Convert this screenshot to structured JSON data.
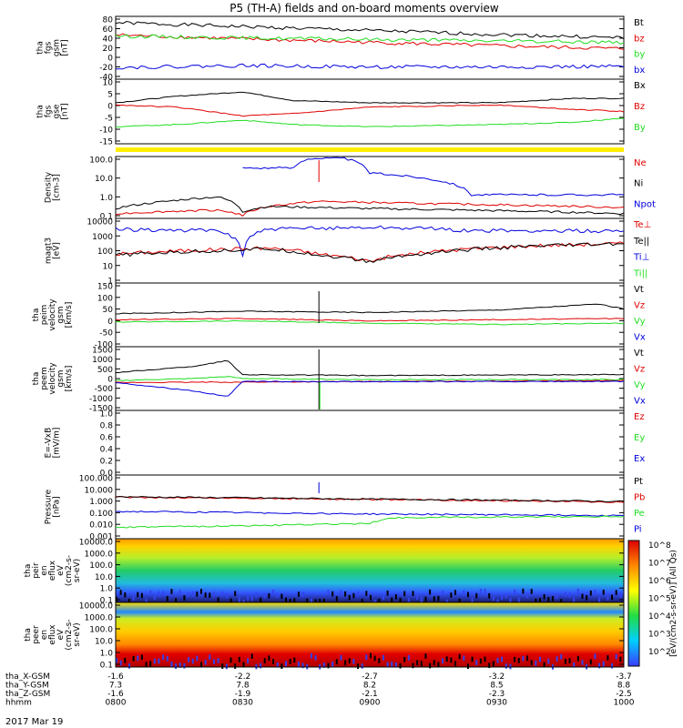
{
  "title": "P5 (TH-A) fields and on-board moments overview",
  "date_label": "2017 Mar 19",
  "colors": {
    "black": "#000000",
    "red": "#e00000",
    "green": "#22dd22",
    "blue": "#0000dd",
    "yellow": "#ffee00"
  },
  "chart_data": [
    {
      "type": "line",
      "ylabel": [
        "tha",
        "fgs",
        "gsm",
        "[nT]"
      ],
      "yticks": [
        "80",
        "60",
        "40",
        "20",
        "0",
        "-20",
        "-40"
      ],
      "ylim": [
        -40,
        80
      ],
      "legend": [
        {
          "name": "Bt",
          "color": "black"
        },
        {
          "name": "bz",
          "color": "red"
        },
        {
          "name": "by",
          "color": "green"
        },
        {
          "name": "bx",
          "color": "blue"
        }
      ],
      "series": [
        {
          "name": "Bt",
          "color": "black",
          "x": [
            0,
            0.25,
            0.5,
            0.75,
            1
          ],
          "y": [
            71,
            63,
            55,
            47,
            40
          ]
        },
        {
          "name": "bz",
          "color": "red",
          "x": [
            0,
            0.25,
            0.5,
            0.75,
            1
          ],
          "y": [
            46,
            38,
            31,
            24,
            18
          ]
        },
        {
          "name": "by",
          "color": "green",
          "x": [
            0,
            0.25,
            0.5,
            0.75,
            1
          ],
          "y": [
            44,
            40,
            37,
            34,
            31
          ]
        },
        {
          "name": "bx",
          "color": "blue",
          "x": [
            0,
            0.25,
            0.5,
            0.75,
            1
          ],
          "y": [
            -20,
            -16,
            -19,
            -19,
            -18
          ]
        }
      ]
    },
    {
      "type": "line",
      "ylabel": [
        "tha",
        "fgs",
        "gse",
        "[nT]"
      ],
      "yticks": [
        "10",
        "5",
        "0",
        "-5",
        "-10",
        "-15"
      ],
      "ylim": [
        -17,
        11
      ],
      "legend": [
        {
          "name": "Bx",
          "color": "black"
        },
        {
          "name": "Bz",
          "color": "red"
        },
        {
          "name": "By",
          "color": "green"
        }
      ],
      "series": [
        {
          "name": "Bx",
          "color": "black",
          "x": [
            0,
            0.12,
            0.25,
            0.35,
            0.5,
            0.75,
            0.9,
            1
          ],
          "y": [
            1,
            4,
            6,
            2,
            1,
            1,
            3,
            3
          ]
        },
        {
          "name": "Bz",
          "color": "red",
          "x": [
            0,
            0.12,
            0.25,
            0.35,
            0.5,
            0.75,
            0.9,
            1
          ],
          "y": [
            0,
            -1,
            -5,
            -4,
            -1,
            0,
            -2,
            -3
          ]
        },
        {
          "name": "By",
          "color": "green",
          "x": [
            0,
            0.12,
            0.25,
            0.35,
            0.5,
            0.75,
            0.9,
            1
          ],
          "y": [
            -10,
            -9,
            -7,
            -9,
            -10,
            -9,
            -8,
            -6
          ]
        }
      ]
    },
    {
      "type": "line",
      "ylabel": [
        "Density",
        "[cm-3]"
      ],
      "yticks": [
        "100.0",
        "10.0",
        "1.0",
        "0.1"
      ],
      "scale": "log",
      "ylim": [
        0.1,
        300
      ],
      "legend": [
        {
          "name": "Ne",
          "color": "red"
        },
        {
          "name": "Ni",
          "color": "black"
        },
        {
          "name": "Npot",
          "color": "blue"
        }
      ],
      "series": [
        {
          "name": "Npot",
          "color": "blue",
          "x": [
            0.25,
            0.35,
            0.38,
            0.45,
            0.5,
            0.7,
            1
          ],
          "y": [
            80,
            80,
            300,
            300,
            40,
            2,
            2
          ]
        },
        {
          "name": "Ne",
          "color": "red",
          "x": [
            0,
            0.2,
            0.25,
            0.3,
            0.4,
            0.6,
            1
          ],
          "y": [
            0.15,
            0.25,
            0.12,
            0.4,
            0.8,
            0.6,
            0.35
          ]
        },
        {
          "name": "Ni",
          "color": "black",
          "x": [
            0,
            0.1,
            0.2,
            0.25,
            0.3,
            0.5,
            1
          ],
          "y": [
            0.3,
            0.8,
            1.5,
            0.2,
            0.4,
            0.3,
            0.15
          ]
        }
      ]
    },
    {
      "type": "line",
      "ylabel": [
        "magt3",
        "[eV]"
      ],
      "yticks": [
        "10000",
        "1000",
        "100",
        "10",
        "1"
      ],
      "scale": "log",
      "ylim": [
        1,
        10000
      ],
      "legend": [
        {
          "name": "Te⊥",
          "color": "red"
        },
        {
          "name": "Te||",
          "color": "black"
        },
        {
          "name": "Ti⊥",
          "color": "blue"
        },
        {
          "name": "Ti||",
          "color": "green"
        }
      ],
      "series": [
        {
          "name": "Ti⊥",
          "color": "blue",
          "x": [
            0,
            0.2,
            0.25,
            0.3,
            0.5,
            0.6,
            0.7,
            1
          ],
          "y": [
            2500,
            2000,
            50,
            2500,
            3500,
            3000,
            2000,
            2000
          ]
        },
        {
          "name": "Te⊥",
          "color": "red",
          "x": [
            0,
            0.2,
            0.3,
            0.4,
            0.5,
            0.6,
            0.8,
            1
          ],
          "y": [
            60,
            120,
            150,
            60,
            20,
            70,
            200,
            300
          ]
        },
        {
          "name": "Te||",
          "color": "black",
          "x": [
            0,
            0.2,
            0.3,
            0.4,
            0.5,
            0.6,
            0.8,
            1
          ],
          "y": [
            50,
            100,
            130,
            50,
            18,
            60,
            180,
            280
          ]
        }
      ]
    },
    {
      "type": "line",
      "ylabel": [
        "tha",
        "peim",
        "velocity",
        "gsm",
        "[km/s]"
      ],
      "yticks": [
        "150",
        "100",
        "50",
        "0",
        "-50",
        "-100"
      ],
      "ylim": [
        -100,
        150
      ],
      "legend": [
        {
          "name": "Vt",
          "color": "black"
        },
        {
          "name": "Vz",
          "color": "red"
        },
        {
          "name": "Vy",
          "color": "green"
        },
        {
          "name": "Vx",
          "color": "blue"
        }
      ],
      "series": [
        {
          "name": "Vt",
          "color": "black",
          "x": [
            0,
            0.25,
            0.5,
            0.75,
            0.95,
            1
          ],
          "y": [
            30,
            40,
            35,
            45,
            70,
            50
          ]
        },
        {
          "name": "Vz",
          "color": "red",
          "x": [
            0,
            0.25,
            0.5,
            0.75,
            1
          ],
          "y": [
            5,
            10,
            0,
            5,
            10
          ]
        },
        {
          "name": "Vy",
          "color": "green",
          "x": [
            0,
            0.25,
            0.5,
            0.75,
            1
          ],
          "y": [
            -5,
            0,
            -10,
            -15,
            -10
          ]
        }
      ]
    },
    {
      "type": "line",
      "ylabel": [
        "tha",
        "peem",
        "velocity",
        "gsm",
        "[km/s]"
      ],
      "yticks": [
        "1500",
        "1000",
        "500",
        "0",
        "-500",
        "-1000",
        "-1500"
      ],
      "ylim": [
        -1500,
        1500
      ],
      "legend": [
        {
          "name": "Vt",
          "color": "black"
        },
        {
          "name": "Vz",
          "color": "red"
        },
        {
          "name": "Vy",
          "color": "green"
        },
        {
          "name": "Vx",
          "color": "blue"
        }
      ],
      "series": [
        {
          "name": "Vt",
          "color": "black",
          "x": [
            0,
            0.15,
            0.22,
            0.25,
            0.5,
            1
          ],
          "y": [
            300,
            600,
            900,
            200,
            150,
            200
          ]
        },
        {
          "name": "Vy",
          "color": "green",
          "x": [
            0,
            0.15,
            0.22,
            0.25,
            0.5,
            1
          ],
          "y": [
            -100,
            0,
            100,
            0,
            -50,
            -50
          ]
        },
        {
          "name": "Vz",
          "color": "red",
          "x": [
            0,
            0.5,
            1
          ],
          "y": [
            -200,
            -150,
            -100
          ]
        },
        {
          "name": "Vx",
          "color": "blue",
          "x": [
            0,
            0.15,
            0.22,
            0.25,
            0.5,
            1
          ],
          "y": [
            -200,
            -600,
            -900,
            -150,
            -150,
            -150
          ]
        }
      ]
    },
    {
      "type": "line",
      "ylabel": [
        "E=-VxB",
        "[mV/m]"
      ],
      "yticks": [
        "1.0",
        "0.8",
        "0.6",
        "0.4",
        "0.2",
        "0.0"
      ],
      "ylim": [
        0,
        1
      ],
      "legend": [
        {
          "name": "Ez",
          "color": "red"
        },
        {
          "name": "Ey",
          "color": "green"
        },
        {
          "name": "Ex",
          "color": "blue"
        }
      ],
      "series": []
    },
    {
      "type": "line",
      "ylabel": [
        "Pressure",
        "[nPa]"
      ],
      "yticks": [
        "100.000",
        "10.000",
        "1.000",
        "0.100",
        "0.010",
        "0.001"
      ],
      "scale": "log",
      "ylim": [
        0.001,
        100
      ],
      "legend": [
        {
          "name": "Pt",
          "color": "black"
        },
        {
          "name": "Pb",
          "color": "red"
        },
        {
          "name": "Pe",
          "color": "green"
        },
        {
          "name": "Pi",
          "color": "blue"
        }
      ],
      "series": [
        {
          "name": "Pb",
          "color": "red",
          "x": [
            0,
            0.5,
            1
          ],
          "y": [
            2.0,
            1.3,
            0.8
          ]
        },
        {
          "name": "Pt",
          "color": "black",
          "x": [
            0,
            0.5,
            1
          ],
          "y": [
            2.2,
            1.4,
            0.9
          ]
        },
        {
          "name": "Pi",
          "color": "blue",
          "x": [
            0,
            0.5,
            1
          ],
          "y": [
            0.13,
            0.08,
            0.06
          ]
        },
        {
          "name": "Pe",
          "color": "green",
          "x": [
            0,
            0.3,
            0.5,
            0.55,
            1
          ],
          "y": [
            0.006,
            0.009,
            0.013,
            0.04,
            0.05
          ]
        }
      ]
    },
    {
      "type": "heatmap",
      "ylabel": [
        "tha",
        "peir",
        "en",
        "eflux",
        "eV",
        "(cm2-s-",
        "sr-eV)"
      ],
      "yticks": [
        "10000.0",
        "1000.0",
        "100.0",
        "10.0",
        "1.0",
        "0.1"
      ]
    },
    {
      "type": "heatmap",
      "ylabel": [
        "tha",
        "peer",
        "en",
        "eflux",
        "eV",
        "(cm2-s-",
        "sr-eV)"
      ],
      "yticks": [
        "10000.0",
        "1000.0",
        "100.0",
        "10.0",
        "1.0",
        "0.1"
      ]
    }
  ],
  "colorbar": {
    "label": "[eV/(cm2-s-sr-eV)] (All Qs)",
    "ticks": [
      "10^8",
      "10^7",
      "10^6",
      "10^5",
      "10^4",
      "10^3",
      "10^2"
    ]
  },
  "xaxis": {
    "rows": [
      {
        "label": "tha_X-GSM",
        "values": [
          "-1.6",
          "-2.2",
          "-2.7",
          "-3.2",
          "-3.7"
        ]
      },
      {
        "label": "tha_Y-GSM",
        "values": [
          "7.3",
          "7.8",
          "8.2",
          "8.5",
          "8.8"
        ]
      },
      {
        "label": "tha_Z-GSM",
        "values": [
          "-1.6",
          "-1.9",
          "-2.1",
          "-2.3",
          "-2.5"
        ]
      },
      {
        "label": "hhmm",
        "values": [
          "0800",
          "0830",
          "0900",
          "0930",
          "1000"
        ]
      }
    ]
  }
}
